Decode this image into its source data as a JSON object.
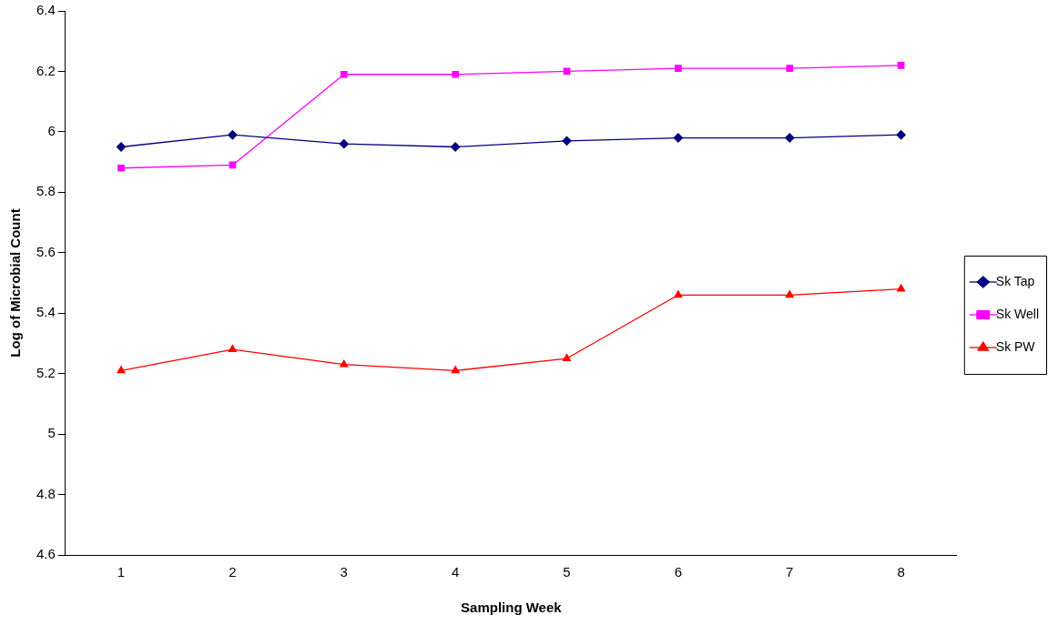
{
  "chart_data": {
    "type": "line",
    "xlabel": "Sampling Week",
    "ylabel": "Log of Microbial Count",
    "categories": [
      "1",
      "2",
      "3",
      "4",
      "5",
      "6",
      "7",
      "8"
    ],
    "series": [
      {
        "name": "Sk Tap",
        "color": "#000080",
        "marker": "diamond",
        "values": [
          5.95,
          5.99,
          5.96,
          5.95,
          5.97,
          5.98,
          5.98,
          5.99
        ]
      },
      {
        "name": "Sk Well",
        "color": "#ff00ff",
        "marker": "square",
        "values": [
          5.88,
          5.89,
          6.19,
          6.19,
          6.2,
          6.21,
          6.21,
          6.22
        ]
      },
      {
        "name": "Sk PW",
        "color": "#ff0000",
        "marker": "triangle",
        "values": [
          5.21,
          5.28,
          5.23,
          5.21,
          5.25,
          5.46,
          5.46,
          5.48
        ]
      }
    ],
    "ylim": [
      4.6,
      6.4
    ],
    "yticks": [
      4.6,
      4.8,
      5,
      5.2,
      5.4,
      5.6,
      5.8,
      6,
      6.2,
      6.4
    ],
    "grid": false,
    "legend": "right",
    "line_style": "solid"
  }
}
